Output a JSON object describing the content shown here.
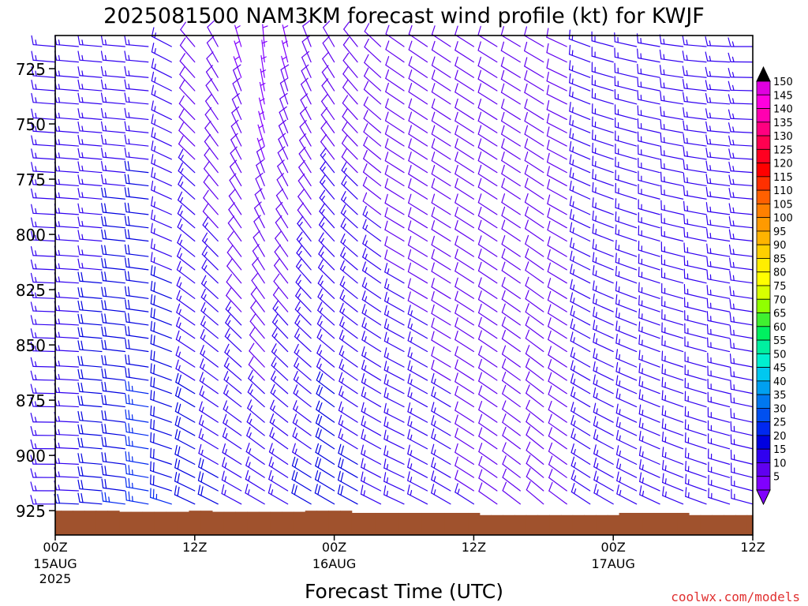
{
  "chart_data": {
    "type": "wind-barb-profile",
    "title": "2025081500 NAM3KM forecast wind profile (kt) for KWJF",
    "xlabel": "Forecast Time (UTC)",
    "ylabel": "",
    "credit": "coolwx.com/models",
    "x_range_hours": [
      0,
      60
    ],
    "y_range_hpa": [
      710,
      936
    ],
    "x_ticks": [
      {
        "hour": 0,
        "label": "00Z",
        "sub1": "15AUG",
        "sub2": "2025"
      },
      {
        "hour": 12,
        "label": "12Z",
        "sub1": "",
        "sub2": ""
      },
      {
        "hour": 24,
        "label": "00Z",
        "sub1": "16AUG",
        "sub2": ""
      },
      {
        "hour": 36,
        "label": "12Z",
        "sub1": "",
        "sub2": ""
      },
      {
        "hour": 48,
        "label": "00Z",
        "sub1": "17AUG",
        "sub2": ""
      },
      {
        "hour": 60,
        "label": "12Z",
        "sub1": "",
        "sub2": ""
      }
    ],
    "y_ticks": [
      725,
      750,
      775,
      800,
      825,
      850,
      875,
      900,
      925
    ],
    "colorbar": {
      "labels": [
        150,
        145,
        140,
        135,
        130,
        125,
        120,
        115,
        110,
        105,
        100,
        95,
        90,
        85,
        80,
        75,
        70,
        65,
        60,
        55,
        50,
        45,
        40,
        35,
        30,
        25,
        20,
        15,
        10,
        5
      ],
      "colors": [
        "#e000e0",
        "#ff00e0",
        "#ff00b0",
        "#ff0080",
        "#ff0050",
        "#ff0020",
        "#ff0000",
        "#ff3000",
        "#ff6000",
        "#ff8000",
        "#ff9a00",
        "#ffb400",
        "#ffd000",
        "#ffee00",
        "#ffff00",
        "#d8ff00",
        "#90ff00",
        "#40f030",
        "#00f060",
        "#00f0a0",
        "#00f0d0",
        "#00c8f0",
        "#00a0f0",
        "#0078f0",
        "#0050f0",
        "#0028f0",
        "#0000e0",
        "#3000f0",
        "#6000f0",
        "#8000ff"
      ],
      "top_arrow_color": "#000000",
      "bottom_arrow_color": "#8000ff"
    },
    "terrain": {
      "color": "#a0522d",
      "surface_pressure_hpa": [
        925.0,
        925.0,
        925.0,
        925.0,
        925.0,
        925.0,
        925.5,
        925.5,
        925.5,
        925.5,
        925.5,
        925.5,
        925.0,
        925.0,
        925.5,
        925.5,
        925.5,
        925.5,
        925.5,
        925.5,
        925.5,
        925.5,
        925.0,
        925.0,
        925.0,
        925.0,
        926.0,
        926.0,
        926.0,
        926.0,
        926.0,
        926.0,
        926.0,
        926.0,
        926.0,
        926.0,
        926.0,
        927.0,
        927.0,
        927.0,
        927.0,
        927.0,
        927.0,
        927.0,
        927.0,
        927.0,
        927.0,
        927.0,
        927.0,
        926.0,
        926.0,
        926.0,
        926.0,
        926.0,
        926.0,
        927.0,
        927.0,
        927.0,
        927.0,
        927.0,
        927.0
      ]
    },
    "wind_levels_hpa": [
      715,
      722,
      729,
      735,
      741,
      748,
      754,
      760,
      766,
      772,
      778,
      784,
      791,
      797,
      803,
      810,
      816,
      822,
      829,
      835,
      841,
      847,
      853,
      860,
      866,
      872,
      878,
      885,
      891,
      897,
      904,
      910,
      916,
      922
    ],
    "wind_keyframes": [
      {
        "hour": 0,
        "spd_upper": 15,
        "spd_lower": 15,
        "dir_upper": 275,
        "dir_lower": 270
      },
      {
        "hour": 8,
        "spd_upper": 15,
        "spd_lower": 25,
        "dir_upper": 275,
        "dir_lower": 280
      },
      {
        "hour": 12,
        "spd_upper": 10,
        "spd_lower": 20,
        "dir_upper": 320,
        "dir_lower": 295
      },
      {
        "hour": 18,
        "spd_upper": 5,
        "spd_lower": 15,
        "dir_upper": 355,
        "dir_lower": 300
      },
      {
        "hour": 24,
        "spd_upper": 10,
        "spd_lower": 20,
        "dir_upper": 330,
        "dir_lower": 300
      },
      {
        "hour": 30,
        "spd_upper": 10,
        "spd_lower": 15,
        "dir_upper": 305,
        "dir_lower": 295
      },
      {
        "hour": 42,
        "spd_upper": 10,
        "spd_lower": 10,
        "dir_upper": 300,
        "dir_lower": 310
      },
      {
        "hour": 48,
        "spd_upper": 15,
        "spd_lower": 15,
        "dir_upper": 285,
        "dir_lower": 300
      },
      {
        "hour": 60,
        "spd_upper": 15,
        "spd_lower": 15,
        "dir_upper": 270,
        "dir_lower": 285
      }
    ]
  }
}
